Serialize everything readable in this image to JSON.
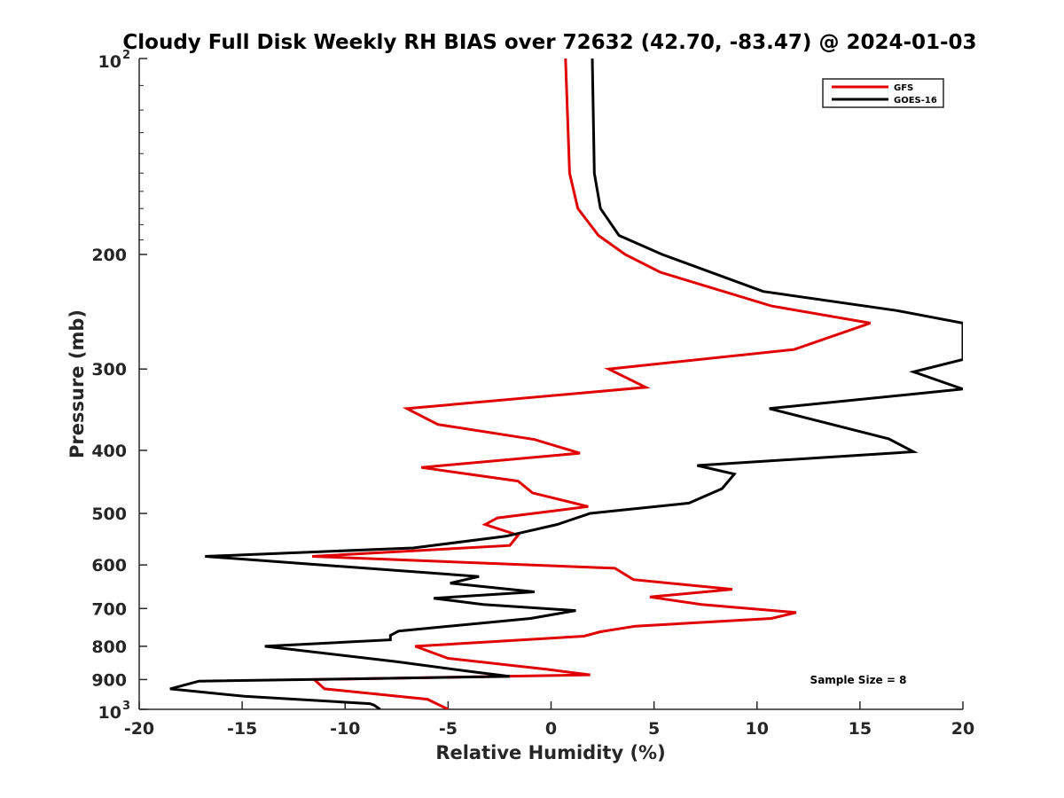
{
  "chart_data": {
    "type": "line",
    "title": "Cloudy Full Disk Weekly RH BIAS over 72632 (42.70, -83.47) @ 2024-01-03",
    "xlabel": "Relative Humidity (%)",
    "ylabel": "Pressure (mb)",
    "xlim": [
      -20,
      20
    ],
    "ylim": [
      100,
      1000
    ],
    "yscale": "log",
    "y_reversed": true,
    "x_ticks": [
      "-20",
      "-15",
      "-10",
      "-5",
      "0",
      "5",
      "10",
      "15",
      "20"
    ],
    "y_ticks": [
      {
        "value": 100,
        "base": "10",
        "exp": "2"
      },
      {
        "value": 200,
        "label": "200"
      },
      {
        "value": 300,
        "label": "300"
      },
      {
        "value": 400,
        "label": "400"
      },
      {
        "value": 500,
        "label": "500"
      },
      {
        "value": 600,
        "label": "600"
      },
      {
        "value": 700,
        "label": "700"
      },
      {
        "value": 800,
        "label": "800"
      },
      {
        "value": 900,
        "label": "900"
      },
      {
        "value": 1000,
        "base": "10",
        "exp": "3"
      }
    ],
    "grid": false,
    "legend_position": "top-right",
    "annotation": "Sample Size = 8",
    "series": [
      {
        "name": "GFS",
        "color": "#e00000",
        "points": [
          [
            0.7,
            100
          ],
          [
            0.9,
            150
          ],
          [
            1.3,
            170
          ],
          [
            2.3,
            187
          ],
          [
            3.6,
            200
          ],
          [
            5.3,
            213
          ],
          [
            10.7,
            240
          ],
          [
            15.5,
            255
          ],
          [
            11.8,
            280
          ],
          [
            2.8,
            300
          ],
          [
            4.6,
            320
          ],
          [
            -7.0,
            345
          ],
          [
            -5.5,
            365
          ],
          [
            -0.8,
            385
          ],
          [
            1.4,
            404
          ],
          [
            -6.3,
            425
          ],
          [
            -1.6,
            446
          ],
          [
            -0.9,
            465
          ],
          [
            1.8,
            488
          ],
          [
            -2.6,
            508
          ],
          [
            -3.2,
            520
          ],
          [
            -1.6,
            540
          ],
          [
            -2.0,
            560
          ],
          [
            -11.6,
            582
          ],
          [
            3.1,
            607
          ],
          [
            4.0,
            632
          ],
          [
            8.8,
            654
          ],
          [
            4.8,
            672
          ],
          [
            7.3,
            690
          ],
          [
            11.9,
            710
          ],
          [
            10.7,
            725
          ],
          [
            4.1,
            745
          ],
          [
            2.4,
            760
          ],
          [
            1.6,
            772
          ],
          [
            -6.6,
            800
          ],
          [
            -5.0,
            835
          ],
          [
            -0.2,
            868
          ],
          [
            1.9,
            885
          ],
          [
            -11.5,
            900
          ],
          [
            -11.0,
            930
          ],
          [
            -6.0,
            965
          ],
          [
            -5.0,
            1000
          ]
        ]
      },
      {
        "name": "GOES-16",
        "color": "#000000",
        "points": [
          [
            2.0,
            100
          ],
          [
            2.1,
            150
          ],
          [
            2.4,
            170
          ],
          [
            3.3,
            187
          ],
          [
            5.4,
            200
          ],
          [
            10.3,
            228
          ],
          [
            16.8,
            244
          ],
          [
            20.0,
            255
          ],
          [
            20.0,
            290
          ],
          [
            17.6,
            303
          ],
          [
            20.0,
            322
          ],
          [
            10.6,
            345
          ],
          [
            12.9,
            360
          ],
          [
            16.4,
            384
          ],
          [
            17.6,
            402
          ],
          [
            7.1,
            422
          ],
          [
            8.9,
            435
          ],
          [
            8.3,
            458
          ],
          [
            6.7,
            482
          ],
          [
            1.9,
            500
          ],
          [
            0.3,
            520
          ],
          [
            -2.2,
            542
          ],
          [
            -6.7,
            565
          ],
          [
            -16.8,
            582
          ],
          [
            -3.5,
            625
          ],
          [
            -4.9,
            640
          ],
          [
            -0.8,
            660
          ],
          [
            -5.7,
            675
          ],
          [
            -3.3,
            690
          ],
          [
            1.2,
            705
          ],
          [
            -1.0,
            725
          ],
          [
            -7.4,
            758
          ],
          [
            -7.8,
            770
          ],
          [
            -7.8,
            782
          ],
          [
            -13.9,
            800
          ],
          [
            -7.5,
            845
          ],
          [
            -3.9,
            875
          ],
          [
            -2.0,
            890
          ],
          [
            -17.1,
            905
          ],
          [
            -18.5,
            930
          ],
          [
            -14.9,
            955
          ],
          [
            -8.8,
            980
          ],
          [
            -8.6,
            985
          ],
          [
            -8.3,
            1000
          ]
        ]
      }
    ]
  }
}
